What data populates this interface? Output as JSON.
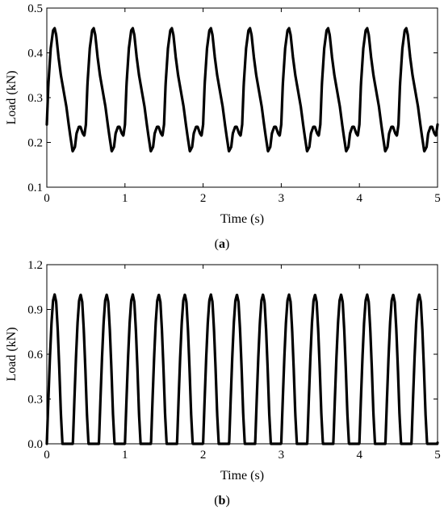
{
  "chart_data": [
    {
      "type": "line",
      "panel_label": "a",
      "xlabel": "Time (s)",
      "ylabel": "Load (kN)",
      "xlim": [
        0,
        5
      ],
      "ylim": [
        0.1,
        0.5
      ],
      "xticks": [
        0,
        1,
        2,
        3,
        4,
        5
      ],
      "yticks": [
        0.1,
        0.2,
        0.3,
        0.4,
        0.5
      ],
      "xtick_labels": [
        "0",
        "1",
        "2",
        "3",
        "4",
        "5"
      ],
      "ytick_labels": [
        "0.1",
        "0.2",
        "0.3",
        "0.4",
        "0.5"
      ],
      "grid": false,
      "period": 0.5,
      "series": [
        {
          "color": "#000000",
          "x": [
            0,
            0.02,
            0.05,
            0.08,
            0.1,
            0.12,
            0.15,
            0.18,
            0.21,
            0.25,
            0.28,
            0.3,
            0.33,
            0.36,
            0.38,
            0.41,
            0.43,
            0.46,
            0.48,
            0.5
          ],
          "y": [
            0.24,
            0.33,
            0.41,
            0.45,
            0.455,
            0.44,
            0.39,
            0.35,
            0.32,
            0.28,
            0.24,
            0.215,
            0.18,
            0.19,
            0.22,
            0.235,
            0.235,
            0.22,
            0.215,
            0.24
          ]
        }
      ]
    },
    {
      "type": "line",
      "panel_label": "b",
      "xlabel": "Time (s)",
      "ylabel": "Load (kN)",
      "xlim": [
        0,
        5
      ],
      "ylim": [
        0.0,
        1.2
      ],
      "xticks": [
        0,
        1,
        2,
        3,
        4,
        5
      ],
      "yticks": [
        0.0,
        0.3,
        0.6,
        0.9,
        1.2
      ],
      "xtick_labels": [
        "0",
        "1",
        "2",
        "3",
        "4",
        "5"
      ],
      "ytick_labels": [
        "0.0",
        "0.3",
        "0.6",
        "0.9",
        "1.2"
      ],
      "grid": false,
      "period": 0.3333,
      "series": [
        {
          "color": "#000000",
          "x": [
            0,
            0.02,
            0.04,
            0.06,
            0.08,
            0.1,
            0.12,
            0.14,
            0.16,
            0.18,
            0.2,
            0.22,
            0.24,
            0.26,
            0.28,
            0.3,
            0.32,
            0.3333
          ],
          "y": [
            0.0,
            0.3,
            0.58,
            0.81,
            0.96,
            1.0,
            0.95,
            0.76,
            0.5,
            0.2,
            0.0,
            0.0,
            0.0,
            0.0,
            0.0,
            0.0,
            0.0,
            0.0
          ]
        }
      ]
    }
  ]
}
